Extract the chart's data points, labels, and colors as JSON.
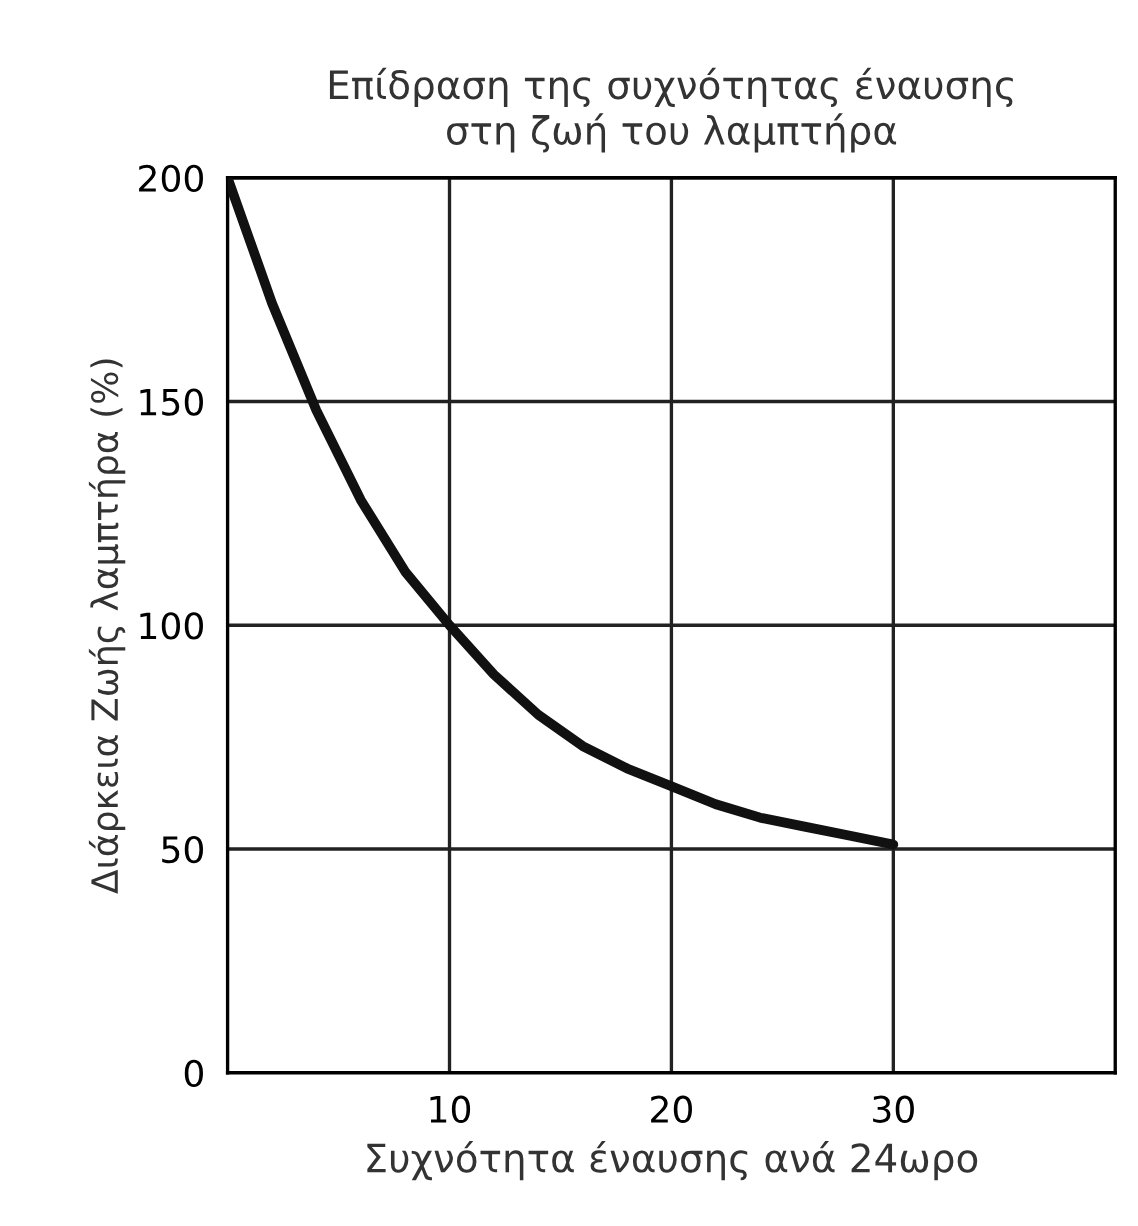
{
  "chart_data": {
    "type": "line",
    "title": "Επίδραση της συχνότητας έναυσης\nστη ζωή του λαμπτήρα",
    "xlabel": "Συχνότητα έναυσης ανά 24ωρο",
    "ylabel": "Διάρκεια Ζωής λαμπτήρα (%)",
    "x": [
      0,
      2,
      4,
      6,
      8,
      10,
      12,
      14,
      16,
      18,
      20,
      22,
      24,
      26,
      28,
      30
    ],
    "series": [
      {
        "color": "#111111",
        "values": [
          200,
          172,
          148,
          128,
          112,
          100,
          89,
          80,
          73,
          68,
          64,
          60,
          57,
          55,
          53,
          51
        ]
      }
    ],
    "xlim": [
      0,
      40
    ],
    "ylim": [
      0,
      200
    ],
    "xticks": [
      10,
      20,
      30
    ],
    "yticks": [
      0,
      50,
      100,
      150,
      200
    ],
    "grid": true,
    "marker": "none",
    "line_style": "solid"
  }
}
